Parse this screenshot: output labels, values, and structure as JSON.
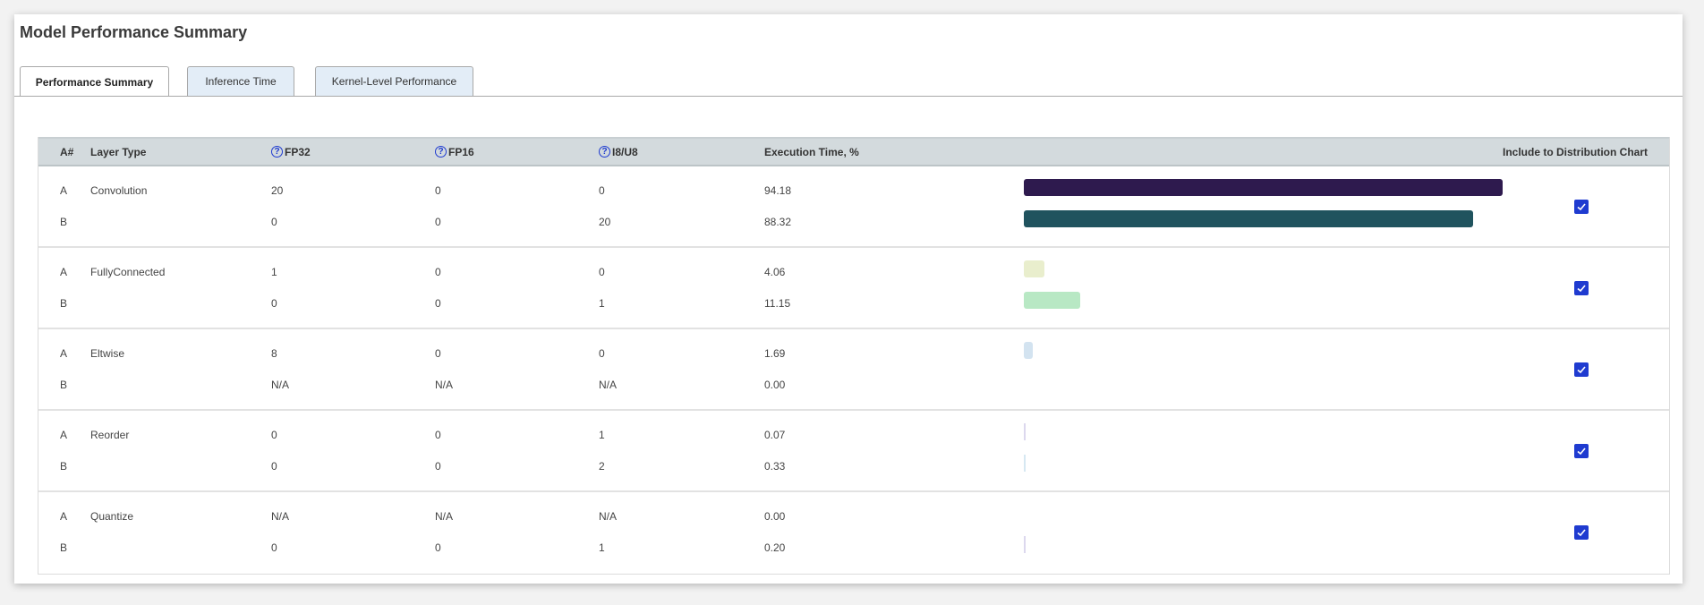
{
  "title": "Model Performance Summary",
  "tabs": [
    {
      "label": "Performance Summary",
      "active": true
    },
    {
      "label": "Inference Time",
      "active": false
    },
    {
      "label": "Kernel-Level Performance",
      "active": false
    }
  ],
  "table": {
    "headers": {
      "a_num": "A#",
      "layer_type": "Layer Type",
      "fp32": "FP32",
      "fp16": "FP16",
      "i8u8": "I8/U8",
      "exec_time": "Execution Time, %",
      "include": "Include to Distribution Chart"
    },
    "help_icon": "?",
    "groups": [
      {
        "layer": "Convolution",
        "include": true,
        "rows": [
          {
            "id": "A",
            "fp32": "20",
            "fp16": "0",
            "i8u8": "0",
            "exec": "94.18",
            "pct": 94.18,
            "color": "#2e1a4e"
          },
          {
            "id": "B",
            "fp32": "0",
            "fp16": "0",
            "i8u8": "20",
            "exec": "88.32",
            "pct": 88.32,
            "color": "#20535e"
          }
        ]
      },
      {
        "layer": "FullyConnected",
        "include": true,
        "rows": [
          {
            "id": "A",
            "fp32": "1",
            "fp16": "0",
            "i8u8": "0",
            "exec": "4.06",
            "pct": 4.06,
            "color": "#e9eecd"
          },
          {
            "id": "B",
            "fp32": "0",
            "fp16": "0",
            "i8u8": "1",
            "exec": "11.15",
            "pct": 11.15,
            "color": "#b8e8c4"
          }
        ]
      },
      {
        "layer": "Eltwise",
        "include": true,
        "rows": [
          {
            "id": "A",
            "fp32": "8",
            "fp16": "0",
            "i8u8": "0",
            "exec": "1.69",
            "pct": 1.69,
            "color": "#d3e3f0"
          },
          {
            "id": "B",
            "fp32": "N/A",
            "fp16": "N/A",
            "i8u8": "N/A",
            "exec": "0.00",
            "pct": 0,
            "color": "#d3e3f0"
          }
        ]
      },
      {
        "layer": "Reorder",
        "include": true,
        "rows": [
          {
            "id": "A",
            "fp32": "0",
            "fp16": "0",
            "i8u8": "1",
            "exec": "0.07",
            "pct": 0.07,
            "color": "#dcd8ee"
          },
          {
            "id": "B",
            "fp32": "0",
            "fp16": "0",
            "i8u8": "2",
            "exec": "0.33",
            "pct": 0.33,
            "color": "#d6e8f2"
          }
        ]
      },
      {
        "layer": "Quantize",
        "include": true,
        "rows": [
          {
            "id": "A",
            "fp32": "N/A",
            "fp16": "N/A",
            "i8u8": "N/A",
            "exec": "0.00",
            "pct": 0,
            "color": "#dcd8ee"
          },
          {
            "id": "B",
            "fp32": "0",
            "fp16": "0",
            "i8u8": "1",
            "exec": "0.20",
            "pct": 0.2,
            "color": "#dcd8ee"
          }
        ]
      }
    ]
  }
}
